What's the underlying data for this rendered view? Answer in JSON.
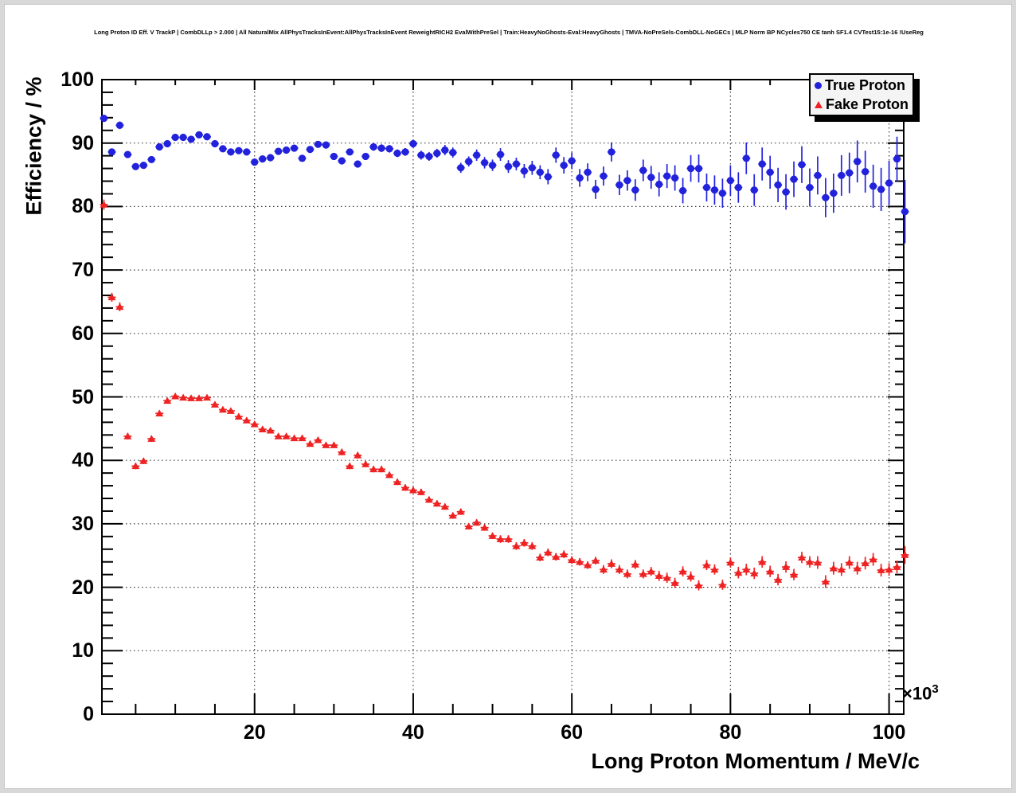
{
  "header": {
    "title": "Long Proton ID Eff. V TrackP | CombDLLp > 2.000 | All NaturalMix AllPhysTracksInEvent:AllPhysTracksInEvent ReweightRICH2 EvalWithPreSel | Train:HeavyNoGhosts-Eval:HeavyGhosts | TMVA-NoPreSels-CombDLL-NoGECs | MLP Norm BP NCycles750 CE tanh SF1.4 CVTest15:1e-16 !UseReg"
  },
  "chart_data": {
    "type": "scatter",
    "title": "Long Proton ID Eff. V TrackP | CombDLLp > 2.000 | All NaturalMix AllPhysTracksInEvent:AllPhysTracksInEvent ReweightRICH2 EvalWithPreSel | Train:HeavyNoGhosts-Eval:HeavyGhosts | TMVA-NoPreSels-CombDLL-NoGECs | MLP Norm BP NCycles750 CE tanh SF1.4 CVTest15:1e-16 !UseReg",
    "xlabel": "Long Proton Momentum / MeV/c",
    "ylabel": "Efficiency / %",
    "grid": true,
    "legend_position": "top-right",
    "x_axis": {
      "unit_scale": 1000,
      "multiplier_base": "×10",
      "multiplier_exp": "3",
      "range": [
        0.75,
        101.85
      ],
      "labeled_ticks": [
        20,
        40,
        60,
        80,
        100
      ],
      "minor_step": 5
    },
    "y_axis": {
      "range": [
        0,
        100
      ],
      "labeled_ticks": [
        0,
        10,
        20,
        30,
        40,
        50,
        60,
        70,
        80,
        90,
        100
      ],
      "minor_step": 2
    },
    "x_start": 1,
    "x_step": 1,
    "xerr": 0.5,
    "series": [
      {
        "name": "True Proton",
        "marker": "circle",
        "color": "#2222dd",
        "y": [
          93.9,
          88.6,
          92.8,
          88.2,
          86.3,
          86.5,
          87.4,
          89.4,
          89.9,
          90.9,
          90.9,
          90.6,
          91.3,
          91.0,
          89.9,
          89.1,
          88.6,
          88.8,
          88.6,
          87.0,
          87.5,
          87.7,
          88.7,
          88.9,
          89.2,
          87.6,
          89.0,
          89.8,
          89.7,
          87.9,
          87.2,
          88.6,
          86.7,
          87.9,
          89.4,
          89.2,
          89.1,
          88.4,
          88.6,
          89.9,
          88.1,
          87.9,
          88.4,
          88.9,
          88.5,
          86.1,
          87.1,
          88.1,
          86.9,
          86.5,
          88.2,
          86.3,
          86.7,
          85.6,
          86.1,
          85.4,
          84.7,
          88.1,
          86.5,
          87.2,
          84.5,
          85.4,
          82.7,
          84.8,
          88.6,
          83.4,
          84.1,
          82.6,
          85.7,
          84.6,
          83.5,
          84.8,
          84.5,
          82.5,
          86.0,
          86.0,
          83.0,
          82.6,
          82.1,
          84.1,
          83.0,
          87.6,
          82.6,
          86.7,
          85.4,
          83.4,
          82.3,
          84.3,
          86.6,
          83.0,
          84.9,
          81.4,
          82.1,
          84.9,
          85.3,
          87.1,
          85.5,
          83.2,
          82.7,
          83.7,
          87.5,
          79.2
        ],
        "yerr": [
          0.5,
          0.5,
          0.6,
          0.4,
          0.4,
          0.4,
          0.4,
          0.4,
          0.4,
          0.4,
          0.4,
          0.4,
          0.4,
          0.4,
          0.4,
          0.4,
          0.4,
          0.4,
          0.4,
          0.4,
          0.5,
          0.5,
          0.5,
          0.5,
          0.5,
          0.5,
          0.5,
          0.5,
          0.5,
          0.5,
          0.5,
          0.5,
          0.5,
          0.5,
          0.6,
          0.6,
          0.6,
          0.6,
          0.6,
          0.6,
          0.7,
          0.7,
          0.7,
          0.8,
          0.8,
          0.8,
          0.8,
          0.9,
          0.9,
          0.9,
          1.0,
          1.0,
          1.0,
          1.1,
          1.1,
          1.1,
          1.2,
          1.2,
          1.3,
          1.3,
          1.4,
          1.4,
          1.5,
          1.5,
          1.5,
          1.6,
          1.6,
          1.7,
          1.7,
          1.8,
          1.9,
          1.9,
          2.0,
          2.0,
          2.1,
          2.2,
          2.2,
          2.3,
          2.3,
          2.4,
          2.4,
          2.5,
          2.5,
          2.6,
          2.6,
          2.7,
          2.8,
          2.8,
          2.9,
          3.0,
          3.0,
          3.1,
          3.1,
          3.2,
          3.2,
          3.3,
          3.3,
          3.4,
          3.4,
          3.5,
          3.5,
          5.0
        ]
      },
      {
        "name": "Fake Proton",
        "marker": "triangle",
        "color": "#ee2222",
        "y": [
          80.3,
          65.7,
          64.2,
          43.8,
          39.1,
          39.9,
          43.4,
          47.4,
          49.4,
          50.1,
          49.9,
          49.8,
          49.8,
          49.9,
          48.8,
          48.0,
          47.8,
          46.9,
          46.3,
          45.7,
          44.9,
          44.7,
          43.8,
          43.8,
          43.5,
          43.5,
          42.6,
          43.2,
          42.4,
          42.4,
          41.3,
          39.1,
          40.8,
          39.4,
          38.6,
          38.6,
          37.7,
          36.6,
          35.7,
          35.3,
          35.0,
          33.8,
          33.2,
          32.7,
          31.3,
          31.9,
          29.6,
          30.2,
          29.4,
          28.1,
          27.6,
          27.6,
          26.5,
          27.0,
          26.5,
          24.7,
          25.5,
          24.8,
          25.2,
          24.3,
          24.0,
          23.5,
          24.2,
          22.8,
          23.7,
          22.8,
          22.1,
          23.6,
          22.1,
          22.5,
          21.8,
          21.5,
          20.7,
          22.5,
          21.7,
          20.3,
          23.5,
          22.8,
          20.4,
          23.9,
          22.3,
          22.8,
          22.2,
          24.0,
          22.5,
          21.2,
          23.2,
          22.0,
          24.7,
          24.0,
          23.9,
          20.9,
          23.0,
          22.8,
          23.9,
          23.0,
          23.8,
          24.4,
          22.7,
          22.8,
          23.2,
          25.1
        ],
        "yerr": [
          0.8,
          0.7,
          0.7,
          0.5,
          0.5,
          0.5,
          0.5,
          0.4,
          0.4,
          0.4,
          0.4,
          0.4,
          0.4,
          0.4,
          0.4,
          0.4,
          0.4,
          0.4,
          0.4,
          0.4,
          0.4,
          0.4,
          0.4,
          0.4,
          0.4,
          0.4,
          0.4,
          0.4,
          0.4,
          0.4,
          0.5,
          0.5,
          0.5,
          0.5,
          0.5,
          0.5,
          0.5,
          0.5,
          0.5,
          0.5,
          0.5,
          0.5,
          0.5,
          0.5,
          0.5,
          0.5,
          0.5,
          0.5,
          0.5,
          0.5,
          0.6,
          0.6,
          0.6,
          0.6,
          0.6,
          0.6,
          0.6,
          0.6,
          0.6,
          0.6,
          0.6,
          0.6,
          0.6,
          0.7,
          0.7,
          0.7,
          0.7,
          0.7,
          0.7,
          0.7,
          0.8,
          0.8,
          0.8,
          0.8,
          0.8,
          0.8,
          0.8,
          0.8,
          0.8,
          0.8,
          0.9,
          0.9,
          0.9,
          0.9,
          0.9,
          0.9,
          0.9,
          0.9,
          0.9,
          0.9,
          1.0,
          1.0,
          1.0,
          1.0,
          1.0,
          1.0,
          1.0,
          1.0,
          1.0,
          1.0,
          1.0,
          1.4
        ]
      }
    ]
  }
}
